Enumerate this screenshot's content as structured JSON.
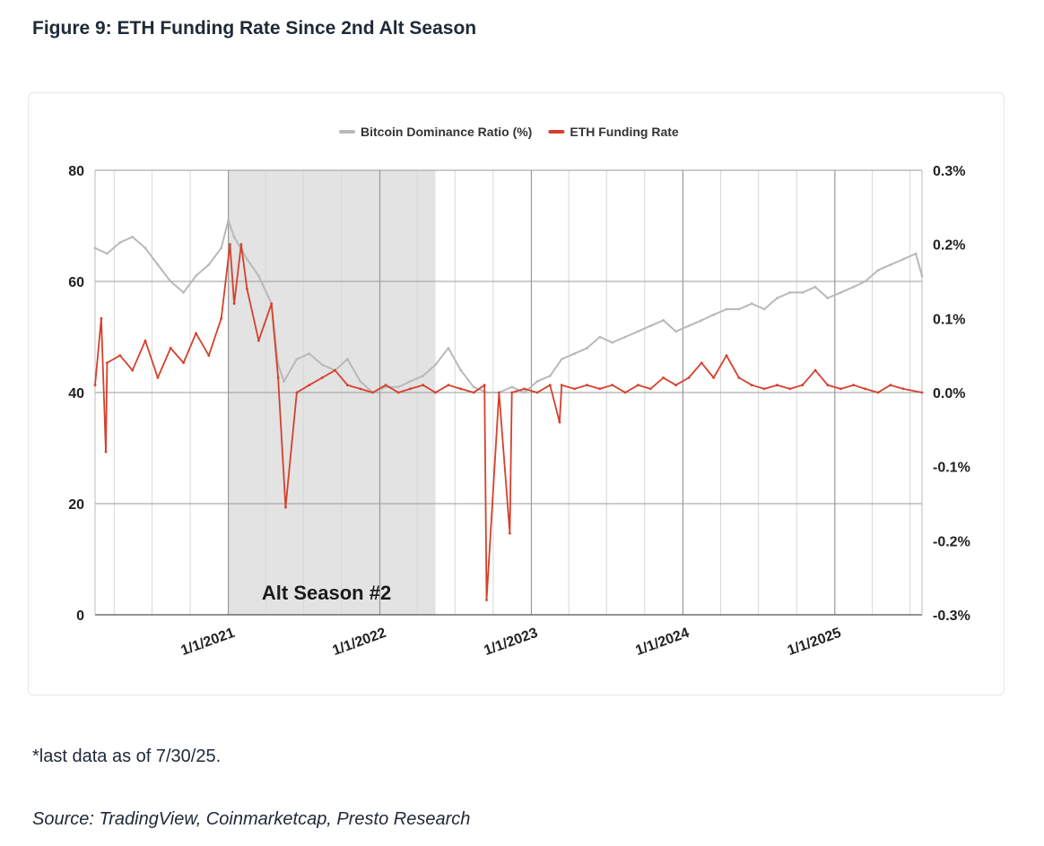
{
  "header": {
    "title": "Figure 9: ETH Funding Rate Since 2nd Alt Season"
  },
  "chart_data": {
    "type": "line",
    "legend_position": "top-center",
    "grid": true,
    "xlim": [
      "2020-02-15",
      "2025-07-30"
    ],
    "x_ticks": [
      "1/1/2021",
      "1/1/2022",
      "1/1/2023",
      "1/1/2024",
      "1/1/2025"
    ],
    "y_left": {
      "ylim": [
        0,
        80
      ],
      "ticks": [
        "80",
        "60",
        "40",
        "20",
        "0"
      ]
    },
    "y_right": {
      "ylim": [
        -0.3,
        0.3
      ],
      "unit": "%",
      "ticks": [
        "0.3%",
        "0.2%",
        "0.1%",
        "0.0%",
        "-0.1%",
        "-0.2%",
        "-0.3%"
      ]
    },
    "annotation": {
      "label": "Alt Season #2",
      "x_start": "2021-01-01",
      "x_end": "2022-05-15"
    },
    "series": [
      {
        "name": "Bitcoin Dominance Ratio (%)",
        "axis": "left",
        "color": "#b9b9b9",
        "x": [
          "2020-02-15",
          "2020-03-15",
          "2020-04-15",
          "2020-05-15",
          "2020-06-15",
          "2020-07-15",
          "2020-08-15",
          "2020-09-15",
          "2020-10-15",
          "2020-11-15",
          "2020-12-15",
          "2021-01-01",
          "2021-01-15",
          "2021-02-15",
          "2021-03-15",
          "2021-04-15",
          "2021-05-01",
          "2021-05-15",
          "2021-06-15",
          "2021-07-15",
          "2021-08-15",
          "2021-09-15",
          "2021-10-15",
          "2021-11-15",
          "2021-12-15",
          "2022-01-15",
          "2022-02-15",
          "2022-03-15",
          "2022-04-15",
          "2022-05-15",
          "2022-06-15",
          "2022-07-15",
          "2022-08-15",
          "2022-09-15",
          "2022-10-15",
          "2022-11-15",
          "2022-12-15",
          "2023-01-15",
          "2023-02-15",
          "2023-03-15",
          "2023-04-15",
          "2023-05-15",
          "2023-06-15",
          "2023-07-15",
          "2023-08-15",
          "2023-09-15",
          "2023-10-15",
          "2023-11-15",
          "2023-12-15",
          "2024-01-15",
          "2024-02-15",
          "2024-03-15",
          "2024-04-15",
          "2024-05-15",
          "2024-06-15",
          "2024-07-15",
          "2024-08-15",
          "2024-09-15",
          "2024-10-15",
          "2024-11-15",
          "2024-12-15",
          "2025-01-15",
          "2025-02-15",
          "2025-03-15",
          "2025-04-15",
          "2025-05-15",
          "2025-06-15",
          "2025-07-15",
          "2025-07-30"
        ],
        "values": [
          66,
          65,
          67,
          68,
          66,
          63,
          60,
          58,
          61,
          63,
          66,
          71,
          68,
          64,
          61,
          56,
          45,
          42,
          46,
          47,
          45,
          44,
          46,
          42,
          40,
          41,
          41,
          42,
          43,
          45,
          48,
          44,
          41,
          40,
          40,
          41,
          40,
          42,
          43,
          46,
          47,
          48,
          50,
          49,
          50,
          51,
          52,
          53,
          51,
          52,
          53,
          54,
          55,
          55,
          56,
          55,
          57,
          58,
          58,
          59,
          57,
          58,
          59,
          60,
          62,
          63,
          64,
          65,
          61
        ]
      },
      {
        "name": "ETH Funding Rate",
        "axis": "right",
        "color": "#d6402b",
        "x": [
          "2020-02-15",
          "2020-03-01",
          "2020-03-12",
          "2020-03-15",
          "2020-04-15",
          "2020-05-15",
          "2020-06-15",
          "2020-07-15",
          "2020-08-15",
          "2020-09-15",
          "2020-10-15",
          "2020-11-15",
          "2020-12-15",
          "2021-01-05",
          "2021-01-15",
          "2021-02-01",
          "2021-02-15",
          "2021-03-15",
          "2021-04-15",
          "2021-05-01",
          "2021-05-19",
          "2021-06-15",
          "2021-07-15",
          "2021-08-15",
          "2021-09-15",
          "2021-10-15",
          "2021-11-15",
          "2021-12-15",
          "2022-01-15",
          "2022-02-15",
          "2022-03-15",
          "2022-04-15",
          "2022-05-15",
          "2022-06-15",
          "2022-07-15",
          "2022-08-15",
          "2022-09-10",
          "2022-09-15",
          "2022-10-15",
          "2022-11-10",
          "2022-11-15",
          "2022-12-15",
          "2023-01-15",
          "2023-02-15",
          "2023-03-10",
          "2023-03-15",
          "2023-04-15",
          "2023-05-15",
          "2023-06-15",
          "2023-07-15",
          "2023-08-15",
          "2023-09-15",
          "2023-10-15",
          "2023-11-15",
          "2023-12-15",
          "2024-01-15",
          "2024-02-15",
          "2024-03-15",
          "2024-04-15",
          "2024-05-15",
          "2024-06-15",
          "2024-07-15",
          "2024-08-15",
          "2024-09-15",
          "2024-10-15",
          "2024-11-15",
          "2024-12-15",
          "2025-01-15",
          "2025-02-15",
          "2025-03-15",
          "2025-04-15",
          "2025-05-15",
          "2025-06-15",
          "2025-07-30"
        ],
        "values": [
          0.01,
          0.1,
          -0.08,
          0.04,
          0.05,
          0.03,
          0.07,
          0.02,
          0.06,
          0.04,
          0.08,
          0.05,
          0.1,
          0.2,
          0.12,
          0.2,
          0.14,
          0.07,
          0.12,
          0.02,
          -0.155,
          0.0,
          0.01,
          0.02,
          0.03,
          0.01,
          0.005,
          0.0,
          0.01,
          0.0,
          0.005,
          0.01,
          0.0,
          0.01,
          0.005,
          0.0,
          0.01,
          -0.28,
          0.0,
          -0.19,
          0.0,
          0.005,
          0.0,
          0.01,
          -0.04,
          0.01,
          0.005,
          0.01,
          0.005,
          0.01,
          0.0,
          0.01,
          0.005,
          0.02,
          0.01,
          0.02,
          0.04,
          0.02,
          0.05,
          0.02,
          0.01,
          0.005,
          0.01,
          0.005,
          0.01,
          0.03,
          0.01,
          0.005,
          0.01,
          0.005,
          0.0,
          0.01,
          0.005,
          0.0
        ]
      }
    ]
  },
  "footer": {
    "note": "*last data as of 7/30/25.",
    "source": "Source: TradingView, Coinmarketcap, Presto Research"
  }
}
